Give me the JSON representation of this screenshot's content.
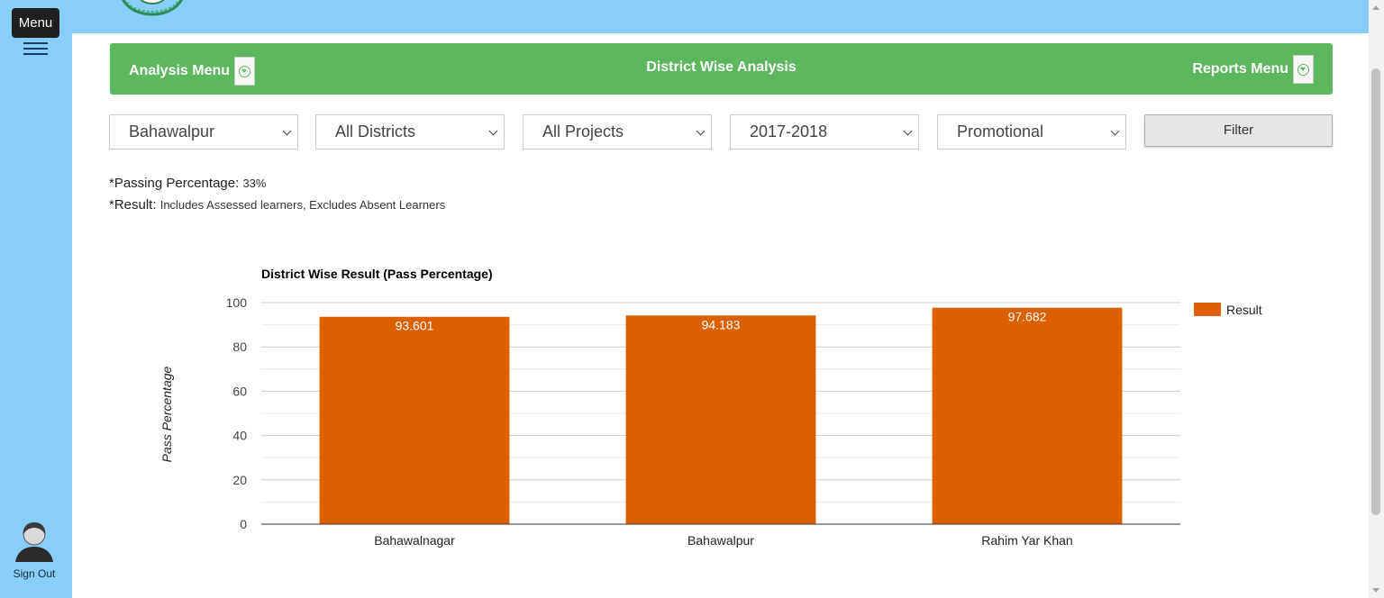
{
  "sidebar": {
    "menu_label": "Menu",
    "signout_label": "Sign Out"
  },
  "nav": {
    "analysis_menu": "Analysis Menu",
    "center_title": "District Wise Analysis",
    "reports_menu": "Reports Menu"
  },
  "filters": {
    "division": "Bahawalpur",
    "district": "All Districts",
    "project": "All Projects",
    "year": "2017-2018",
    "exam_type": "Promotional",
    "filter_button": "Filter"
  },
  "notes": {
    "passing_label": "*Passing Percentage:",
    "passing_value": "33%",
    "result_label": "*Result:",
    "result_value": "Includes Assessed learners, Excludes Absent Learners"
  },
  "colors": {
    "sidebar": "#87cefa",
    "nav_green": "#5cb85c",
    "bar": "#dc5f00"
  },
  "chart_data": {
    "type": "bar",
    "title": "District Wise Result (Pass Percentage)",
    "xlabel": "",
    "ylabel": "Pass Percentage",
    "categories": [
      "Bahawalnagar",
      "Bahawalpur",
      "Rahim Yar Khan"
    ],
    "series": [
      {
        "name": "Result",
        "values": [
          93.601,
          94.183,
          97.682
        ],
        "color": "#dc5f00"
      }
    ],
    "ylim": [
      0,
      100
    ],
    "yticks": [
      0,
      20,
      40,
      60,
      80,
      100
    ],
    "grid": true,
    "legend": "right"
  }
}
